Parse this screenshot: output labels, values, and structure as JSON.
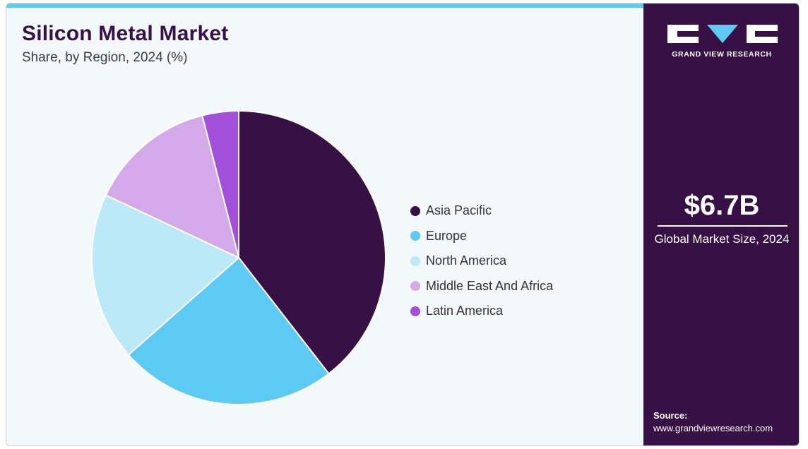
{
  "header": {
    "title": "Silicon Metal Market",
    "subtitle": "Share, by Region, 2024 (%)"
  },
  "brand": {
    "name": "GRAND VIEW RESEARCH",
    "logo_icon": "gvr-logo-icon"
  },
  "highlight": {
    "value": "$6.7B",
    "caption": "Global Market Size, 2024"
  },
  "source": {
    "label": "Source:",
    "url": "www.grandviewresearch.com"
  },
  "colors": {
    "accent": "#5ccaf3",
    "panel": "#371145",
    "title": "#37114a",
    "background": "#f3f8fb"
  },
  "chart_data": {
    "type": "pie",
    "title": "Silicon Metal Market",
    "subtitle": "Share, by Region, 2024 (%)",
    "legend_position": "right",
    "start_angle": "12 o'clock, clockwise",
    "categories": [
      "Asia Pacific",
      "Europe",
      "North America",
      "Middle East And Africa",
      "Latin America"
    ],
    "values": [
      39.5,
      24,
      18.5,
      14,
      4
    ],
    "colors": [
      "#371145",
      "#5ccaf3",
      "#bce9f8",
      "#d4a9e9",
      "#a24fd9"
    ]
  }
}
